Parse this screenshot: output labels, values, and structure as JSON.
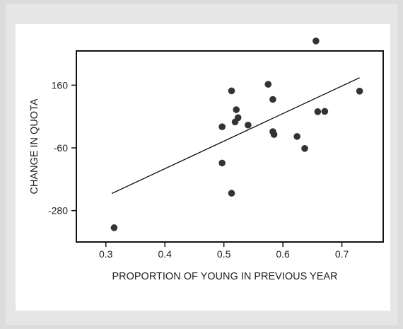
{
  "chart_data": {
    "type": "scatter",
    "title": "",
    "xlabel": "PROPORTION OF YOUNG IN PREVIOUS YEAR",
    "ylabel": "CHANGE IN QUOTA",
    "xlim": [
      0.25,
      0.77
    ],
    "ylim": [
      -390,
      280
    ],
    "xticks": [
      0.3,
      0.4,
      0.5,
      0.6,
      0.7
    ],
    "yticks": [
      160,
      -60,
      -280
    ],
    "xtick_labels": [
      "0.3",
      "0.4",
      "0.5",
      "0.6",
      "0.7"
    ],
    "ytick_labels": [
      "160",
      "-60",
      "-280"
    ],
    "grid": false,
    "points": {
      "x": [
        0.314,
        0.497,
        0.513,
        0.521,
        0.524,
        0.519,
        0.541,
        0.575,
        0.583,
        0.585,
        0.583,
        0.624,
        0.637,
        0.656,
        0.659,
        0.671,
        0.73,
        0.497,
        0.513
      ],
      "y": [
        -340,
        14,
        140,
        74,
        46,
        31,
        20,
        163,
        110,
        -13,
        -3,
        -20,
        -62,
        315,
        67,
        68,
        139,
        -113,
        -219
      ]
    },
    "trendline": {
      "x": [
        0.31,
        0.73
      ],
      "y": [
        -220,
        186
      ]
    },
    "colors": {
      "points": "#333333",
      "line": "#111111",
      "axes": "#111111"
    }
  }
}
